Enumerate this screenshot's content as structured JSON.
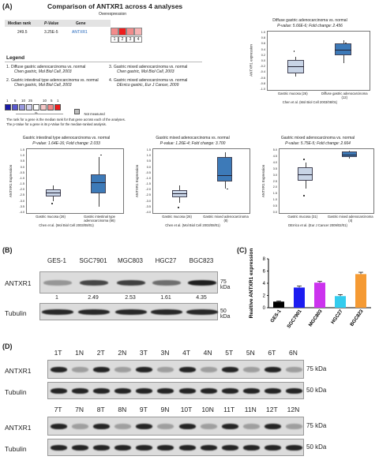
{
  "panelA": {
    "label": "(A)",
    "title": "Comparison of ANTXR1 across 4 analyses",
    "subtitle": "Overexpression",
    "table": {
      "headers": [
        "Median rank",
        "P-Value",
        "Gene"
      ],
      "values": [
        "249.5",
        "3.25E-5",
        "ANTXR1"
      ],
      "cell_colors": [
        "#f28b8b",
        "#ee1c1c",
        "#f28b8b",
        "#f6b3b3"
      ],
      "cell_numbers": [
        "1",
        "2",
        "3",
        "4"
      ]
    },
    "legend": {
      "title": "Legend",
      "entries": [
        {
          "num": "1.",
          "name": "Diffuse gastric adenocarcinoma vs. normal",
          "ref": "Chen gastric, Mol Biol Cell, 2003"
        },
        {
          "num": "2.",
          "name": "Gastric intestinal type adenocarcinoma vs. normal",
          "ref": "Chen gastric, Mol Biol Cell, 2003"
        },
        {
          "num": "3.",
          "name": "Gastric mixed adenocarcinoma vs. normal",
          "ref": "Chen gastric, Mol Biol Cell, 2003"
        },
        {
          "num": "4.",
          "name": "Gastric mixed adenocarcinoma vs. normal",
          "ref": "DErrico gastric, Eur J Cancer, 2009"
        }
      ],
      "scale_top": [
        "1",
        "5",
        "10",
        "25",
        "10",
        "5",
        "1"
      ],
      "scale_colors": [
        "#1a1aa8",
        "#5a5ad0",
        "#9a9ae0",
        "#d6d6f0",
        "#ffffff",
        "#f6c8c8",
        "#f08a8a",
        "#ee1c1c"
      ],
      "scale_bottom": "%",
      "not_measured": "Not measured",
      "note1": "The rank for a gene is the median rank for that gene across each of the analyses.",
      "note2": "The p-Value for a gene is its p-Value for the median-ranked analysis."
    },
    "boxplots": [
      {
        "title": "Diffuse gastric adenocarcinoma vs. normal",
        "stat": "P-value: 5.66E-6; Fold change: 2.456",
        "ylabel": "ANTXR1 expression",
        "yticks": [
          "1.0",
          "0.8",
          "0.6",
          "0.4",
          "0.2",
          "0.0",
          "-0.2",
          "-0.4",
          "-0.6",
          "-0.8",
          "-1.0"
        ],
        "groups": [
          "Gastric mucosa (26)",
          "Diffuse gastric adenocarcinoma (12)"
        ],
        "citation": "Chen et al. (Mol Biol Cell 2003/08/01)"
      },
      {
        "title": "Gastric intestinal type adenocarcinoma vs. normal",
        "stat": "P-value: 1.64E-16; Fold change: 2.033",
        "ylabel": "ANTXR1 Expression",
        "yticks": [
          "1.5",
          "1.0",
          "0.5",
          "0.0",
          "-0.5",
          "-1.0",
          "-1.5",
          "-2.0",
          "-2.5",
          "-3.0",
          "-3.5",
          "-4.0"
        ],
        "groups": [
          "Gastric mucosa (26)",
          "Gastric intestinal type adenocarcinoma (66)"
        ],
        "citation": "Chen et al. (Mol Biol Cell 2003/08/01)"
      },
      {
        "title": "Gastric mixed adenocarcinoma vs. normal",
        "stat": "P-value: 1.26E-4; Fold change: 3.700",
        "ylabel": "ANTXR1 Expression",
        "yticks": [
          "1.5",
          "1.0",
          "0.5",
          "0.0",
          "-0.5",
          "-1.0",
          "-1.5",
          "-2.0",
          "-2.5",
          "-3.0",
          "-3.5",
          "-4.0"
        ],
        "groups": [
          "Gastric mucosa (26)",
          "Gastric mixed adenocarcinoma (8)"
        ],
        "citation": "Chen et al. (Mol Biol Cell 2003/08/01)"
      },
      {
        "title": "Gastric mixed adenocarcinoma vs. normal",
        "stat": "P-value: 5.75E-5; Fold change: 2.664",
        "ylabel": "ANTXR1 Expression",
        "yticks": [
          "5.0",
          "4.5",
          "4.0",
          "3.5",
          "3.0",
          "2.5",
          "2.0",
          "1.5",
          "1.0",
          "0.5",
          "0.0"
        ],
        "groups": [
          "Gastric mucosa (31)",
          "Gastric mixed adenocarcinoma (4)"
        ],
        "citation": "DErrico et al. (Eur J Cancer 2009/02/01)"
      }
    ]
  },
  "panelB": {
    "label": "(B)",
    "lanes": [
      "GES-1",
      "SGC7901",
      "MGC803",
      "HGC27",
      "BGC823"
    ],
    "rows": [
      "ANTXR1",
      "Tubulin"
    ],
    "values": [
      "1",
      "2.49",
      "2.53",
      "1.61",
      "4.35"
    ],
    "kda": [
      "75 kDa",
      "50 kDa"
    ]
  },
  "panelC": {
    "label": "(C)",
    "chart_data": {
      "type": "bar",
      "categories": [
        "GES-1",
        "SGC7901",
        "MGC803",
        "HGC27",
        "BGC823"
      ],
      "values": [
        1.0,
        3.3,
        4.1,
        1.9,
        5.5
      ],
      "errors": [
        0.1,
        0.25,
        0.2,
        0.25,
        0.3
      ],
      "colors": [
        "#000000",
        "#1c1cf0",
        "#cc33ee",
        "#33ccee",
        "#f59a33"
      ],
      "ylabel": "Realtive ANTXR1 expression",
      "ylim": [
        0,
        8
      ],
      "yticks": [
        "0",
        "2",
        "4",
        "6",
        "8"
      ]
    }
  },
  "panelD": {
    "label": "(D)",
    "top_lanes": [
      "1T",
      "1N",
      "2T",
      "2N",
      "3T",
      "3N",
      "4T",
      "4N",
      "5T",
      "5N",
      "6T",
      "6N"
    ],
    "bottom_lanes": [
      "7T",
      "7N",
      "8T",
      "8N",
      "9T",
      "9N",
      "10T",
      "10N",
      "11T",
      "11N",
      "12T",
      "12N"
    ],
    "rows": [
      "ANTXR1",
      "Tubulin"
    ],
    "kda": [
      "75 kDa",
      "50 kDa"
    ]
  }
}
